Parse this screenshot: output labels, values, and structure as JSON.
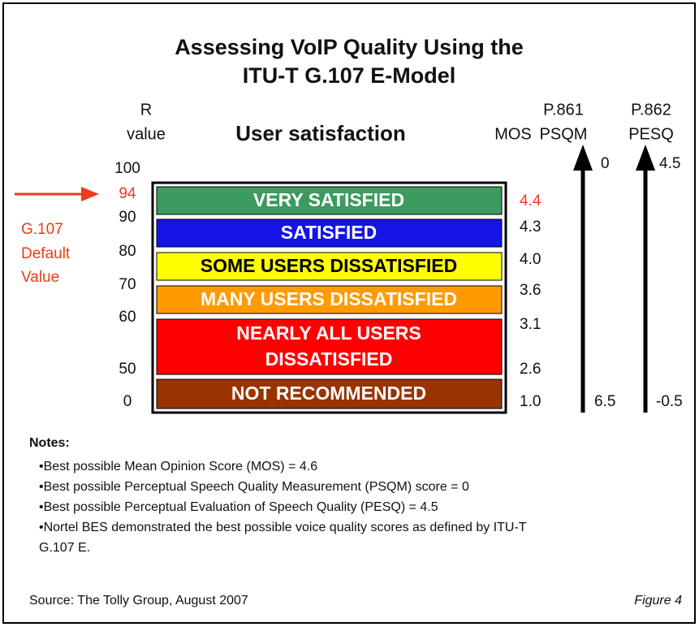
{
  "title": {
    "lines": [
      "Assessing VoIP Quality Using the",
      "ITU-T G.107 E-Model"
    ]
  },
  "headers": {
    "r": [
      "R",
      "value"
    ],
    "satisfaction": "User satisfaction",
    "mos": "MOS",
    "psqm": [
      "P.861",
      "PSQM"
    ],
    "pesq": [
      "P.862",
      "PESQ"
    ]
  },
  "r_values": [
    "100",
    "94",
    "90",
    "80",
    "70",
    "60",
    "50",
    "0"
  ],
  "bands": [
    {
      "lines": [
        "VERY SATISFIED"
      ]
    },
    {
      "lines": [
        "SATISFIED"
      ]
    },
    {
      "lines": [
        "SOME USERS DISSATISFIED"
      ]
    },
    {
      "lines": [
        "MANY USERS DISSATISFIED"
      ]
    },
    {
      "lines": [
        "NEARLY ALL USERS",
        "DISSATISFIED"
      ]
    },
    {
      "lines": [
        "NOT RECOMMENDED"
      ]
    }
  ],
  "mos_values": [
    "4.4",
    "4.3",
    "4.0",
    "3.6",
    "3.1",
    "2.6",
    "1.0"
  ],
  "psqm": {
    "top": "0",
    "bottom": "6.5"
  },
  "pesq": {
    "top": "4.5",
    "bottom": "-0.5"
  },
  "callout": {
    "lines": [
      "G.107",
      "Default",
      "Value"
    ]
  },
  "notes": {
    "title": "Notes:",
    "items": [
      {
        "lines": [
          "•Best possible Mean Opinion Score (MOS) = 4.6"
        ]
      },
      {
        "lines": [
          "•Best possible Perceptual Speech Quality Measurement (PSQM) score = 0"
        ]
      },
      {
        "lines": [
          "•Best possible Perceptual Evaluation of Speech Quality (PESQ) = 4.5"
        ]
      },
      {
        "lines": [
          "•Nortel BES demonstrated the best possible voice quality scores as defined by ITU-T",
          "G.107 E."
        ]
      }
    ]
  },
  "source": "Source: The Tolly Group, August 2007",
  "figure": "Figure 4"
}
